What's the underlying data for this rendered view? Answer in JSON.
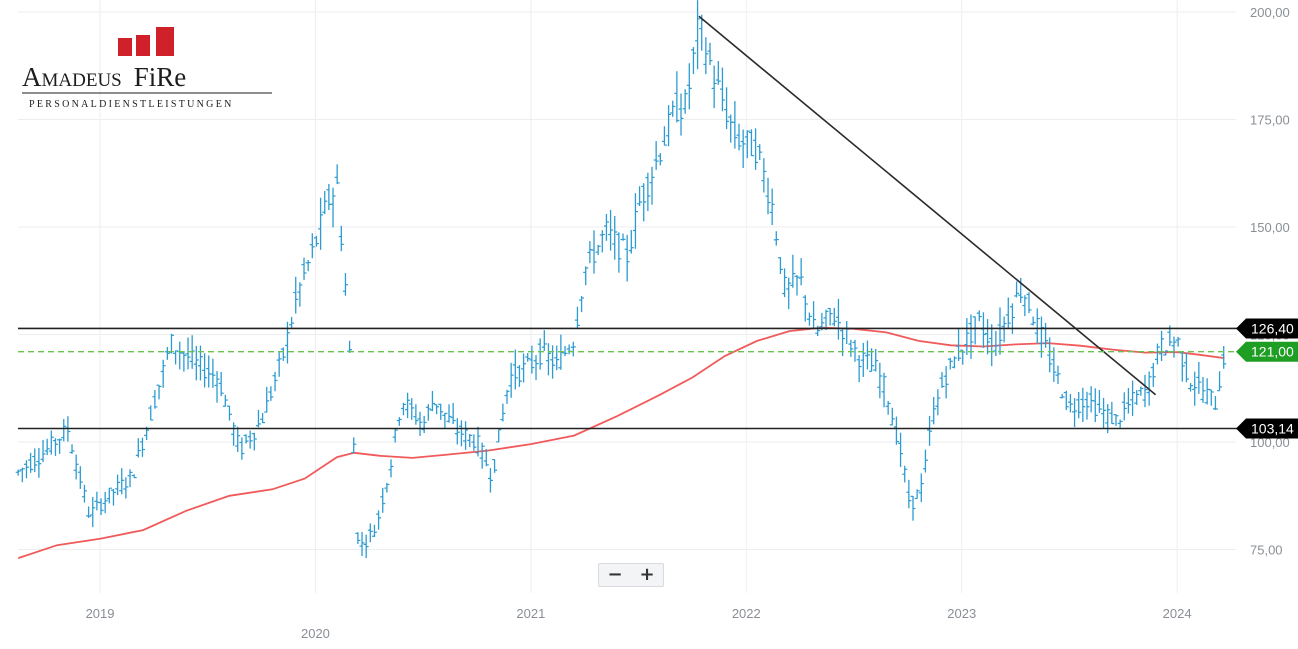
{
  "logo": {
    "name_part1": "Amadeus",
    "name_part2": "FiRe",
    "subtitle": "PERSONALDIENSTLEISTUNGEN",
    "bar_color": "#d0202a"
  },
  "zoom_controls": {
    "minus_label": "−",
    "plus_label": "+"
  },
  "chart_data": {
    "type": "ohlc",
    "title": "",
    "xlabel": "",
    "ylabel": "",
    "ylim": [
      65,
      205
    ],
    "xlim": [
      "2018-08-15",
      "2024-04-10"
    ],
    "y_ticks": [
      {
        "value": 75,
        "label": "75,00"
      },
      {
        "value": 100,
        "label": "100,00"
      },
      {
        "value": 125,
        "label": "125,00"
      },
      {
        "value": 150,
        "label": "150,00"
      },
      {
        "value": 175,
        "label": "175,00"
      },
      {
        "value": 200,
        "label": "200,00"
      }
    ],
    "x_ticks": [
      {
        "label": "2019",
        "t": 2019.0
      },
      {
        "label": "2020",
        "t": 2020.0
      },
      {
        "label": "2021",
        "t": 2021.0
      },
      {
        "label": "2022",
        "t": 2022.0
      },
      {
        "label": "2023",
        "t": 2023.0
      },
      {
        "label": "2024",
        "t": 2024.0
      }
    ],
    "grid": true,
    "price_color": "#2c9bd1",
    "price_path": [
      [
        2018.62,
        93
      ],
      [
        2018.75,
        98
      ],
      [
        2018.85,
        103
      ],
      [
        2018.95,
        83
      ],
      [
        2019.05,
        88
      ],
      [
        2019.15,
        92
      ],
      [
        2019.22,
        104
      ],
      [
        2019.33,
        123
      ],
      [
        2019.45,
        118
      ],
      [
        2019.55,
        115
      ],
      [
        2019.65,
        98
      ],
      [
        2019.75,
        105
      ],
      [
        2019.85,
        120
      ],
      [
        2019.92,
        135
      ],
      [
        2020.0,
        146
      ],
      [
        2020.05,
        155
      ],
      [
        2020.1,
        160
      ],
      [
        2020.15,
        130
      ],
      [
        2020.2,
        75
      ],
      [
        2020.28,
        80
      ],
      [
        2020.35,
        95
      ],
      [
        2020.4,
        110
      ],
      [
        2020.5,
        104
      ],
      [
        2020.55,
        110
      ],
      [
        2020.65,
        103
      ],
      [
        2020.75,
        100
      ],
      [
        2020.82,
        92
      ],
      [
        2020.9,
        115
      ],
      [
        2021.0,
        118
      ],
      [
        2021.05,
        121
      ],
      [
        2021.12,
        118
      ],
      [
        2021.2,
        124
      ],
      [
        2021.25,
        140
      ],
      [
        2021.35,
        149
      ],
      [
        2021.45,
        143
      ],
      [
        2021.5,
        155
      ],
      [
        2021.58,
        165
      ],
      [
        2021.63,
        172
      ],
      [
        2021.68,
        178
      ],
      [
        2021.72,
        178
      ],
      [
        2021.78,
        197
      ],
      [
        2021.85,
        185
      ],
      [
        2021.95,
        171
      ],
      [
        2022.05,
        168
      ],
      [
        2022.12,
        155
      ],
      [
        2022.18,
        135
      ],
      [
        2022.25,
        138
      ],
      [
        2022.32,
        125
      ],
      [
        2022.4,
        130
      ],
      [
        2022.45,
        126
      ],
      [
        2022.52,
        120
      ],
      [
        2022.6,
        117
      ],
      [
        2022.65,
        112
      ],
      [
        2022.72,
        97
      ],
      [
        2022.76,
        85
      ],
      [
        2022.82,
        90
      ],
      [
        2022.86,
        105
      ],
      [
        2022.92,
        115
      ],
      [
        2023.0,
        122
      ],
      [
        2023.08,
        128
      ],
      [
        2023.15,
        122
      ],
      [
        2023.22,
        130
      ],
      [
        2023.28,
        136
      ],
      [
        2023.35,
        127
      ],
      [
        2023.42,
        118
      ],
      [
        2023.5,
        108
      ],
      [
        2023.58,
        110
      ],
      [
        2023.65,
        107
      ],
      [
        2023.72,
        105
      ],
      [
        2023.8,
        110
      ],
      [
        2023.86,
        112
      ],
      [
        2023.92,
        122
      ],
      [
        2024.0,
        124
      ],
      [
        2024.05,
        115
      ],
      [
        2024.12,
        112
      ],
      [
        2024.18,
        109
      ],
      [
        2024.22,
        121
      ]
    ],
    "ma_color": "#f05a5a",
    "moving_average": [
      [
        2018.62,
        73
      ],
      [
        2018.8,
        76
      ],
      [
        2019.0,
        77.5
      ],
      [
        2019.2,
        79.5
      ],
      [
        2019.4,
        84
      ],
      [
        2019.6,
        87.5
      ],
      [
        2019.8,
        89
      ],
      [
        2019.95,
        91.5
      ],
      [
        2020.1,
        96.5
      ],
      [
        2020.18,
        97.5
      ],
      [
        2020.3,
        96.8
      ],
      [
        2020.45,
        96.3
      ],
      [
        2020.6,
        97
      ],
      [
        2020.8,
        98
      ],
      [
        2021.0,
        99.5
      ],
      [
        2021.2,
        101.5
      ],
      [
        2021.4,
        106
      ],
      [
        2021.6,
        111
      ],
      [
        2021.75,
        115
      ],
      [
        2021.9,
        120
      ],
      [
        2022.05,
        123.5
      ],
      [
        2022.2,
        125.8
      ],
      [
        2022.35,
        126.6
      ],
      [
        2022.5,
        126.3
      ],
      [
        2022.65,
        125.5
      ],
      [
        2022.8,
        123.5
      ],
      [
        2022.95,
        122.5
      ],
      [
        2023.1,
        122.2
      ],
      [
        2023.25,
        122.7
      ],
      [
        2023.4,
        123
      ],
      [
        2023.55,
        122.4
      ],
      [
        2023.7,
        121.5
      ],
      [
        2023.85,
        120.8
      ],
      [
        2024.0,
        120.9
      ],
      [
        2024.1,
        120.3
      ],
      [
        2024.22,
        119.5
      ]
    ],
    "trendline": {
      "from": [
        2021.78,
        199
      ],
      "to": [
        2023.9,
        111
      ],
      "color": "#2b2b2b"
    },
    "levels": [
      {
        "value": 126.4,
        "label": "126,40",
        "style": "solid",
        "color": "#222222",
        "badge_color": "#000000"
      },
      {
        "value": 121.0,
        "label": "121,00",
        "style": "dashed",
        "color": "#69c44f",
        "badge_color": "#1e9e22"
      },
      {
        "value": 103.14,
        "label": "103,14",
        "style": "solid",
        "color": "#222222",
        "badge_color": "#000000"
      }
    ]
  }
}
